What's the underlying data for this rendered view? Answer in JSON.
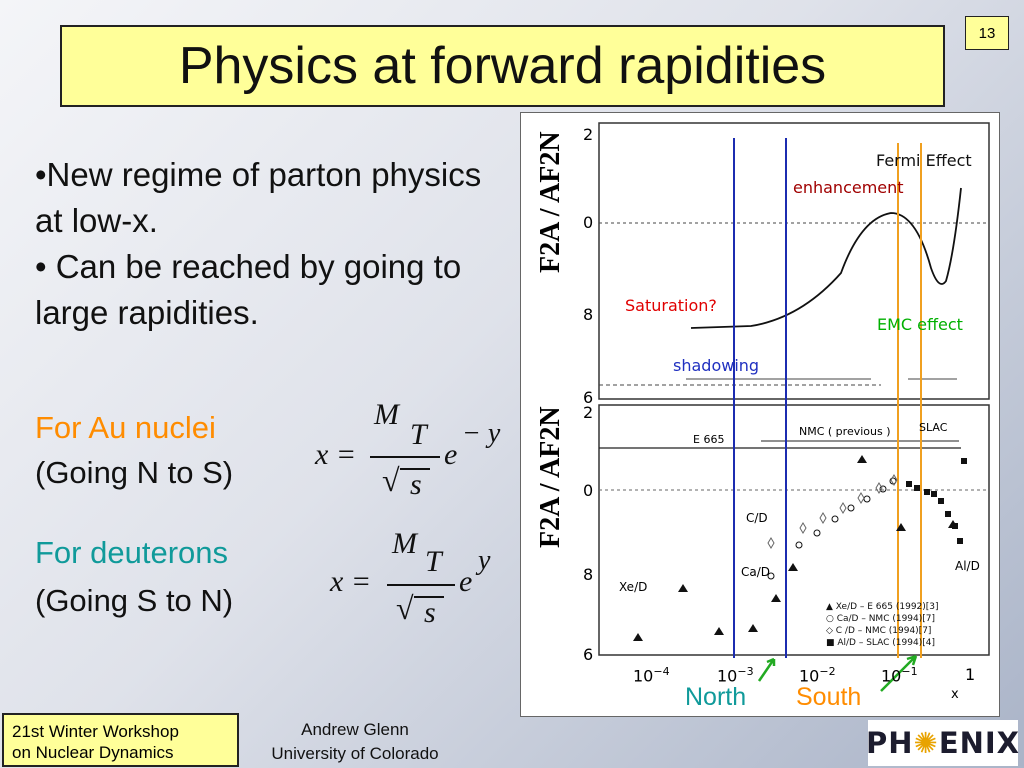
{
  "title": "Physics at forward rapidities",
  "page_number": "13",
  "bullets": [
    "•New regime of parton physics at low-x.",
    "• Can be reached by going to large rapidities."
  ],
  "au": {
    "label": "For Au nuclei",
    "direction": "(Going N to S)"
  },
  "deut": {
    "label": "For deuterons",
    "direction": "(Going S to N)"
  },
  "eq1": {
    "lhs": "x =",
    "num_m": "M",
    "num_t": "T",
    "den": "s",
    "exp_base": "e",
    "exp": "− y"
  },
  "eq2": {
    "lhs": "x =",
    "num_m": "M",
    "num_t": "T",
    "den": "s",
    "exp_base": "e",
    "exp": "y"
  },
  "plot": {
    "top_panel_labels": {
      "fermi": "Fermi Effect",
      "enhancement": "enhancement",
      "saturation": "Saturation?",
      "emc": "EMC effect",
      "shadowing": "shadowing"
    },
    "top_yticks": [
      "2",
      "0",
      "8",
      "6"
    ],
    "bottom_yticks": [
      "2",
      "0",
      "8",
      "6"
    ],
    "xticks": [
      "10",
      "10",
      "10",
      "10",
      "1"
    ],
    "xtick_exps": [
      "−4",
      "−3",
      "−2",
      "−1",
      ""
    ],
    "x_axis_label": "x",
    "bottom_panel_labels": {
      "e665": "E 665",
      "nmc": "NMC  ( previous )",
      "slac": "SLAC",
      "cd": "C/D",
      "cad": "Ca/D",
      "xed": "Xe/D",
      "ald": "Al/D"
    },
    "legend": [
      "▲ Xe/D – E 665 (1992)[3]",
      "○ Ca/D – NMC  (1994)[7]",
      "◇ C /D – NMC  (1994)[7]",
      "■ Al/D – SLAC (1994)[4]"
    ],
    "ylabel": "F2A / AF2N"
  },
  "north": "North",
  "south": "South",
  "footer": {
    "workshop_line1": "21st Winter Workshop",
    "workshop_line2": "on Nuclear Dynamics",
    "author": "Andrew Glenn",
    "affiliation": "University of Colorado"
  },
  "logo": {
    "pre": "PH",
    "sun": "✺",
    "post": "ENIX"
  },
  "colors": {
    "title_bg": "#ffff99",
    "au_label": "#ff8c00",
    "deut_label": "#109a9a",
    "north_lines": "#1c2cb0",
    "south_lines": "#f0a020",
    "arrows": "#22aa22",
    "saturation": "#e00000",
    "enhancement": "#a00000",
    "emc": "#00b000",
    "shadowing": "#2030c0"
  }
}
